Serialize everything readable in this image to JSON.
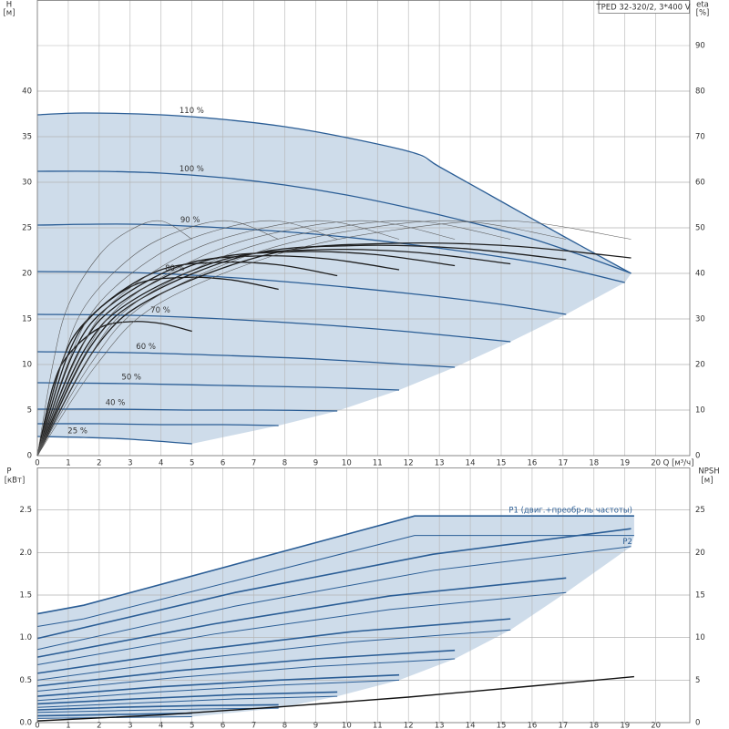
{
  "chart_data": [
    {
      "type": "line",
      "title": "TPED 32-320/2, 3*400 V",
      "y_label": "H",
      "y_unit": "[м]",
      "y2_label": "eta",
      "y2_unit": "[%]",
      "x_label": "Q [м³/ч]",
      "xlim": [
        0,
        21.1
      ],
      "xticks": [
        0,
        1,
        2,
        3,
        4,
        5,
        6,
        7,
        8,
        9,
        10,
        11,
        12,
        13,
        14,
        15,
        16,
        17,
        18,
        19,
        20
      ],
      "ylim": [
        0,
        50
      ],
      "yticks": [
        0,
        5,
        10,
        15,
        20,
        25,
        30,
        35,
        40
      ],
      "y2lim": [
        0,
        100
      ],
      "y2ticks": [
        0,
        10,
        20,
        30,
        40,
        50,
        60,
        70,
        80,
        90
      ],
      "grid": true,
      "fill_color": "#c6d6e6",
      "series": [
        {
          "name": "110 %",
          "color": "#2a5d95",
          "width": 1.3,
          "x": [
            0,
            1.5,
            4,
            6,
            8,
            10,
            12.2,
            13,
            15,
            17,
            19.2
          ],
          "values": [
            37.4,
            37.6,
            37.4,
            36.9,
            36.1,
            34.9,
            33.2,
            31.7,
            27.9,
            24.1,
            20.0
          ]
        },
        {
          "name": "100 %",
          "color": "#2a5d95",
          "width": 1.3,
          "x": [
            0,
            2,
            4,
            6,
            8,
            10,
            12,
            14,
            16,
            18,
            19.2
          ],
          "values": [
            31.2,
            31.2,
            31.0,
            30.5,
            29.7,
            28.6,
            27.2,
            25.6,
            23.8,
            21.5,
            20.0
          ]
        },
        {
          "name": "90 %",
          "color": "#2a5d95",
          "width": 1.3,
          "x": [
            0,
            3,
            6,
            9,
            12,
            15,
            17,
            19
          ],
          "values": [
            25.3,
            25.4,
            25.0,
            24.3,
            23.2,
            21.8,
            20.6,
            19.0
          ]
        },
        {
          "name": "80 %",
          "color": "#2a5d95",
          "width": 1.3,
          "x": [
            0,
            3,
            6,
            9,
            12,
            15,
            17.1
          ],
          "values": [
            20.2,
            20.1,
            19.6,
            18.8,
            17.8,
            16.6,
            15.5
          ]
        },
        {
          "name": "70 %",
          "color": "#2a5d95",
          "width": 1.3,
          "x": [
            0,
            3,
            6,
            9,
            12,
            15.3
          ],
          "values": [
            15.5,
            15.4,
            15.0,
            14.4,
            13.6,
            12.5
          ]
        },
        {
          "name": "60 %",
          "color": "#2a5d95",
          "width": 1.3,
          "x": [
            0,
            3,
            6,
            9,
            12,
            13.5
          ],
          "values": [
            11.4,
            11.3,
            11.0,
            10.6,
            10.0,
            9.7
          ]
        },
        {
          "name": "50 %",
          "color": "#2a5d95",
          "width": 1.3,
          "x": [
            0,
            3,
            6,
            9,
            11.7
          ],
          "values": [
            8.0,
            7.9,
            7.7,
            7.5,
            7.2
          ]
        },
        {
          "name": "40 %",
          "color": "#2a5d95",
          "width": 1.3,
          "x": [
            0,
            2.4,
            4.8,
            7.3,
            9.7
          ],
          "values": [
            5.1,
            5.1,
            5.0,
            5.0,
            4.9
          ]
        },
        {
          "color": "#2a5d95",
          "width": 1.3,
          "x": [
            0,
            2,
            4,
            6,
            7.8
          ],
          "values": [
            3.5,
            3.5,
            3.4,
            3.4,
            3.3
          ]
        },
        {
          "name": "25 %",
          "color": "#2a5d95",
          "width": 1.3,
          "x": [
            0,
            1.5,
            3,
            5
          ],
          "values": [
            2.1,
            2.0,
            1.8,
            1.3
          ]
        },
        {
          "axis": "y2",
          "color": "#1e1e1e",
          "width": 1.3,
          "x": [
            0,
            1.92,
            3.84,
            7.68,
            11.52,
            15.36,
            19.2
          ],
          "values": [
            0,
            24,
            35,
            44.5,
            46.6,
            46,
            43.4
          ]
        },
        {
          "axis": "y2",
          "color": "#1e1e1e",
          "width": 1.3,
          "x": [
            0,
            1.71,
            3.42,
            6.84,
            10.26,
            13.68,
            17.1
          ],
          "values": [
            0,
            23.8,
            34.7,
            44.1,
            46.1,
            45.5,
            43
          ]
        },
        {
          "axis": "y2",
          "color": "#1e1e1e",
          "width": 1.3,
          "x": [
            0,
            1.53,
            3.06,
            6.12,
            9.18,
            12.24,
            15.3
          ],
          "values": [
            0,
            23.3,
            34,
            43.2,
            45.2,
            44.6,
            42.1
          ]
        },
        {
          "axis": "y2",
          "color": "#1e1e1e",
          "width": 1.3,
          "x": [
            0,
            1.35,
            2.7,
            5.4,
            8.1,
            10.8,
            13.5
          ],
          "values": [
            0,
            23,
            33.6,
            42.7,
            44.7,
            44.2,
            41.7
          ]
        },
        {
          "axis": "y2",
          "color": "#1e1e1e",
          "width": 1.3,
          "x": [
            0,
            1.17,
            2.34,
            4.68,
            7.02,
            9.36,
            11.7
          ],
          "values": [
            0,
            22.6,
            32.9,
            41.8,
            43.8,
            43.2,
            40.8
          ]
        },
        {
          "axis": "y2",
          "color": "#1e1e1e",
          "width": 1.3,
          "x": [
            0,
            0.97,
            1.94,
            3.88,
            5.82,
            7.76,
            9.7
          ],
          "values": [
            0,
            21.8,
            31.9,
            40.5,
            42.4,
            41.9,
            39.5
          ]
        },
        {
          "axis": "y2",
          "color": "#1e1e1e",
          "width": 1.3,
          "x": [
            0,
            0.78,
            1.56,
            3.12,
            4.68,
            6.24,
            7.8
          ],
          "values": [
            0,
            20.2,
            29.4,
            37.4,
            39.1,
            38.6,
            36.5
          ]
        },
        {
          "axis": "y2",
          "color": "#1e1e1e",
          "width": 1.3,
          "x": [
            0,
            0.5,
            1,
            2,
            3,
            4,
            5
          ],
          "values": [
            0,
            15.1,
            22.1,
            28,
            29.4,
            29,
            27.3
          ]
        },
        {
          "axis": "y2",
          "color": "#5a5a5a",
          "width": 0.6,
          "x": [
            0,
            1.92,
            3.84,
            7.68,
            11.52,
            15.36,
            19.2
          ],
          "values": [
            0,
            20,
            33,
            44,
            49.5,
            51.5,
            47.5
          ]
        },
        {
          "axis": "y2",
          "color": "#5a5a5a",
          "width": 0.6,
          "x": [
            0,
            1.71,
            3.42,
            6.84,
            10.26,
            13.68,
            17.1
          ],
          "values": [
            0,
            20,
            33,
            44,
            49.5,
            51.5,
            47.5
          ]
        },
        {
          "axis": "y2",
          "color": "#5a5a5a",
          "width": 0.6,
          "x": [
            0,
            1.53,
            3.06,
            6.12,
            9.18,
            12.24,
            15.3
          ],
          "values": [
            0,
            20,
            33,
            44,
            49.5,
            51.5,
            47.5
          ]
        },
        {
          "axis": "y2",
          "color": "#5a5a5a",
          "width": 0.6,
          "x": [
            0,
            1.35,
            2.7,
            5.4,
            8.1,
            10.8,
            13.5
          ],
          "values": [
            0,
            20,
            33,
            44,
            49.5,
            51.5,
            47.5
          ]
        },
        {
          "axis": "y2",
          "color": "#5a5a5a",
          "width": 0.6,
          "x": [
            0,
            1.17,
            2.34,
            4.68,
            7.02,
            9.36,
            11.7
          ],
          "values": [
            0,
            20,
            33,
            44,
            49.5,
            51.5,
            47.5
          ]
        },
        {
          "axis": "y2",
          "color": "#5a5a5a",
          "width": 0.6,
          "x": [
            0,
            0.97,
            1.94,
            3.88,
            5.82,
            7.76,
            9.7
          ],
          "values": [
            0,
            20,
            33,
            44,
            49.5,
            51.5,
            47.5
          ]
        },
        {
          "axis": "y2",
          "color": "#5a5a5a",
          "width": 0.6,
          "x": [
            0,
            0.78,
            1.56,
            3.12,
            4.68,
            6.24,
            7.8
          ],
          "values": [
            0,
            20,
            33,
            44,
            49.5,
            51.5,
            47.5
          ]
        },
        {
          "axis": "y2",
          "color": "#5a5a5a",
          "width": 0.6,
          "x": [
            0,
            0.5,
            1,
            2,
            3,
            4,
            5
          ],
          "values": [
            0,
            20,
            33,
            44,
            49.5,
            51.5,
            47.5
          ]
        }
      ]
    },
    {
      "type": "line",
      "y_label": "P",
      "y_unit": "[кВт]",
      "y2_label": "NPSH",
      "y2_unit": "[м]",
      "xlim": [
        0,
        21.1
      ],
      "xticks": [
        0,
        1,
        2,
        3,
        4,
        5,
        6,
        7,
        8,
        9,
        10,
        11,
        12,
        13,
        14,
        15,
        16,
        17,
        18,
        19,
        20
      ],
      "ylim": [
        0,
        3.0
      ],
      "yticks": [
        {
          "value": 0,
          "label": "0.0"
        },
        0.5,
        {
          "value": 1,
          "label": "1.0"
        },
        1.5,
        {
          "value": 2,
          "label": "2.0"
        },
        2.5
      ],
      "y2lim": [
        0,
        30
      ],
      "y2ticks": [
        0,
        5,
        10,
        15,
        20,
        25
      ],
      "grid": true,
      "fill_color": "#c6d6e6",
      "series": [
        {
          "name": "P1 (двиг.+преобр-ль частоты)",
          "color": "#2a5d95",
          "width": 1.6,
          "x": [
            0,
            1.5,
            12.2,
            19.3
          ],
          "values": [
            1.28,
            1.38,
            2.43,
            2.43
          ]
        },
        {
          "name": "P2",
          "color": "#2a5d95",
          "width": 1.0,
          "x": [
            0,
            1.5,
            12.2,
            19.3
          ],
          "values": [
            1.13,
            1.22,
            2.2,
            2.2
          ]
        },
        {
          "color": "#2a5d95",
          "width": 1.6,
          "x": [
            0,
            6.4,
            12.8,
            19.2
          ],
          "values": [
            0.99,
            1.53,
            1.98,
            2.28
          ]
        },
        {
          "color": "#2a5d95",
          "width": 1.0,
          "x": [
            0,
            6.4,
            12.8,
            19.2
          ],
          "values": [
            0.86,
            1.37,
            1.79,
            2.07
          ]
        },
        {
          "color": "#2a5d95",
          "width": 1.6,
          "x": [
            0,
            5.7,
            11.4,
            17.1
          ],
          "values": [
            0.77,
            1.16,
            1.49,
            1.7
          ]
        },
        {
          "color": "#2a5d95",
          "width": 1.0,
          "x": [
            0,
            5.7,
            11.4,
            17.1
          ],
          "values": [
            0.68,
            1.04,
            1.33,
            1.53
          ]
        },
        {
          "color": "#2a5d95",
          "width": 1.6,
          "x": [
            0,
            5.1,
            10.2,
            15.3
          ],
          "values": [
            0.58,
            0.85,
            1.07,
            1.22
          ]
        },
        {
          "color": "#2a5d95",
          "width": 1.0,
          "x": [
            0,
            5.1,
            10.2,
            15.3
          ],
          "values": [
            0.5,
            0.75,
            0.95,
            1.09
          ]
        },
        {
          "color": "#2a5d95",
          "width": 1.6,
          "x": [
            0,
            4.5,
            9,
            13.5
          ],
          "values": [
            0.43,
            0.61,
            0.75,
            0.85
          ]
        },
        {
          "color": "#2a5d95",
          "width": 1.0,
          "x": [
            0,
            4.5,
            9,
            13.5
          ],
          "values": [
            0.37,
            0.53,
            0.66,
            0.75
          ]
        },
        {
          "color": "#2a5d95",
          "width": 1.6,
          "x": [
            0,
            3.9,
            7.8,
            11.7
          ],
          "values": [
            0.31,
            0.42,
            0.5,
            0.56
          ]
        },
        {
          "color": "#2a5d95",
          "width": 1.0,
          "x": [
            0,
            3.9,
            7.8,
            11.7
          ],
          "values": [
            0.26,
            0.36,
            0.44,
            0.5
          ]
        },
        {
          "color": "#2a5d95",
          "width": 1.6,
          "x": [
            0,
            3.23,
            6.47,
            9.7
          ],
          "values": [
            0.22,
            0.28,
            0.33,
            0.36
          ]
        },
        {
          "color": "#2a5d95",
          "width": 1.0,
          "x": [
            0,
            3.23,
            6.47,
            9.7
          ],
          "values": [
            0.18,
            0.23,
            0.28,
            0.31
          ]
        },
        {
          "color": "#2a5d95",
          "width": 1.6,
          "x": [
            0,
            2.6,
            5.2,
            7.8
          ],
          "values": [
            0.15,
            0.18,
            0.2,
            0.21
          ]
        },
        {
          "color": "#2a5d95",
          "width": 1.0,
          "x": [
            0,
            2.6,
            5.2,
            7.8
          ],
          "values": [
            0.12,
            0.14,
            0.16,
            0.17
          ]
        },
        {
          "color": "#2a5d95",
          "width": 1.6,
          "x": [
            0,
            5
          ],
          "values": [
            0.08,
            0.11
          ]
        },
        {
          "color": "#2a5d95",
          "width": 1.0,
          "x": [
            0,
            5
          ],
          "values": [
            0.05,
            0.07
          ]
        },
        {
          "axis": "y2",
          "color": "#111111",
          "width": 1.4,
          "x": [
            0,
            4,
            8,
            12,
            16,
            19.3
          ],
          "values": [
            0.2,
            0.9,
            1.9,
            3.0,
            4.3,
            5.4
          ]
        }
      ]
    }
  ]
}
